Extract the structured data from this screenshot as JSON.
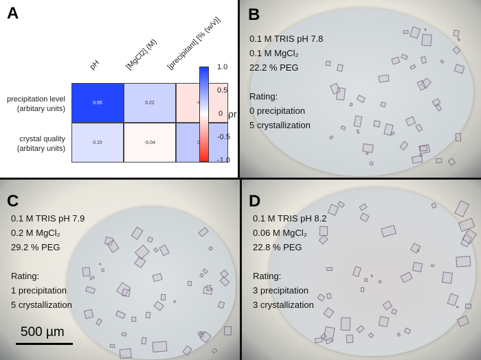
{
  "panel_a": {
    "letter": "A"
  },
  "chart_data": {
    "type": "heatmap",
    "columns": [
      "pH",
      "[MgCl2] (M)",
      "[precipitant] [% (w/v)]"
    ],
    "rows": [
      "precipitation level (arbitary units)",
      "crystal quality (arbitary units)"
    ],
    "row_labels": [
      [
        "precipitation level",
        "(arbitary units)"
      ],
      [
        "crystal quality",
        "(arbitary units)"
      ]
    ],
    "values": [
      [
        0.95,
        0.22,
        -0.13
      ],
      [
        0.15,
        -0.04,
        0.28
      ]
    ],
    "value_labels": [
      [
        "0.95",
        "0.22",
        "-0.13"
      ],
      [
        "0.15",
        "-0.04",
        "0.28"
      ]
    ],
    "colorbar": {
      "label": "ρr",
      "range": [
        -1.0,
        1.0
      ],
      "ticks": [
        "1.0",
        "0.5",
        "0",
        "-0.5",
        "-1.0"
      ],
      "colors": {
        "neg": "#ff2a1a",
        "zero": "#ffffff",
        "pos": "#1a3cff"
      }
    }
  },
  "panel_b": {
    "letter": "B",
    "lines": [
      "0.1 M TRIS pH 7.8",
      "0.1 M MgCl₂",
      "22.2 % PEG"
    ],
    "rating_label": "Rating:",
    "rating": [
      "0 precipitation",
      "5 crystallization"
    ]
  },
  "panel_c": {
    "letter": "C",
    "lines": [
      "0.1 M TRIS pH 7.9",
      "0.2 M MgCl₂",
      "29.2 % PEG"
    ],
    "rating_label": "Rating:",
    "rating": [
      "1 precipitation",
      "5 crystallization"
    ],
    "scale_bar": "500 µm"
  },
  "panel_d": {
    "letter": "D",
    "lines": [
      "0.1 M TRIS pH 8.2",
      "0.06 M MgCl₂",
      "22.8 % PEG"
    ],
    "rating_label": "Rating:",
    "rating": [
      "3 precipitation",
      "3 crystallization"
    ]
  }
}
